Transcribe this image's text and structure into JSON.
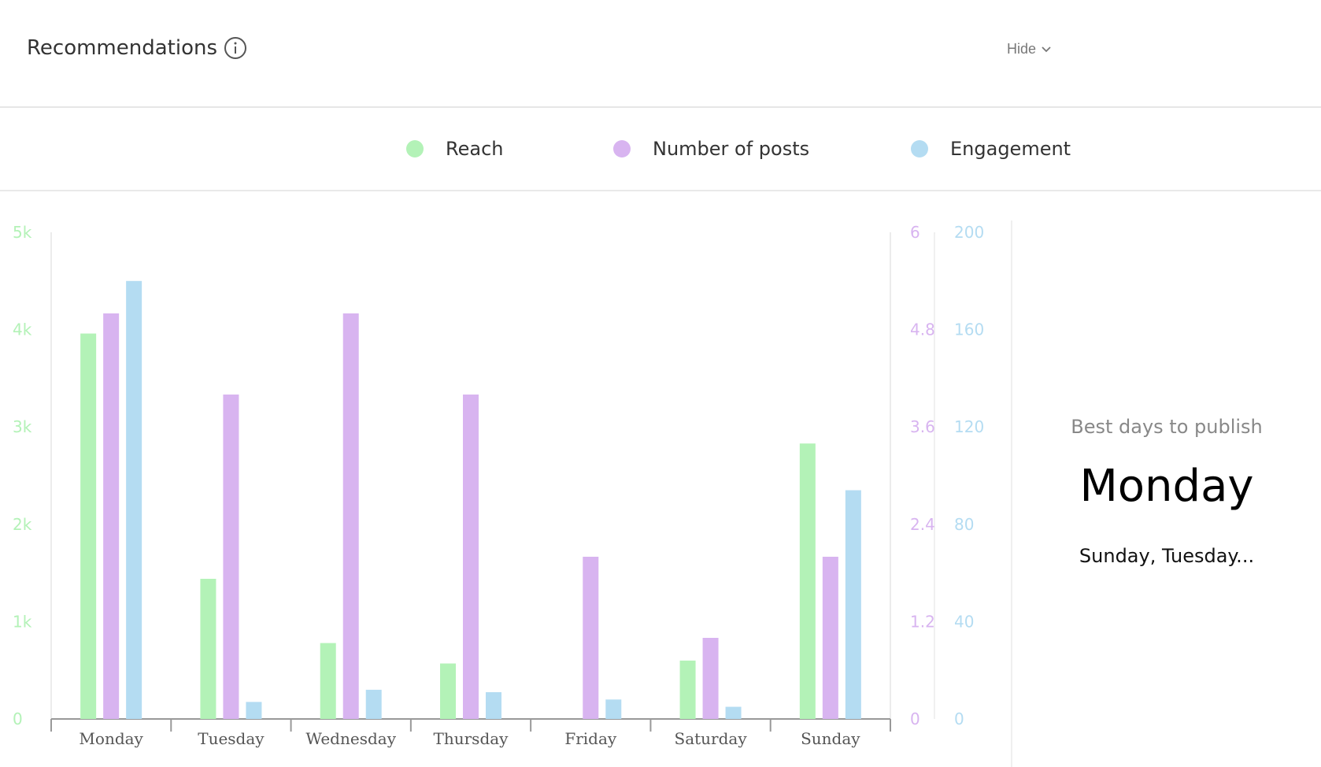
{
  "header": {
    "title": "Recommendations",
    "hide_label": "Hide"
  },
  "legend": [
    {
      "name": "Reach",
      "color": "#b3f2b7"
    },
    {
      "name": "Number of posts",
      "color": "#d8b4f0"
    },
    {
      "name": "Engagement",
      "color": "#b4dcf2"
    }
  ],
  "best_days": {
    "caption": "Best days to publish",
    "best": "Monday",
    "others": "Sunday, Tuesday..."
  },
  "chart_data": {
    "type": "bar",
    "categories": [
      "Monday",
      "Tuesday",
      "Wednesday",
      "Thursday",
      "Friday",
      "Saturday",
      "Sunday"
    ],
    "series": [
      {
        "name": "Reach",
        "color": "#b3f2b7",
        "axis": "left",
        "values": [
          3960,
          1440,
          780,
          570,
          0,
          600,
          2830
        ]
      },
      {
        "name": "Number of posts",
        "color": "#d8b4f0",
        "axis": "right1",
        "values": [
          5,
          4,
          5,
          4,
          2,
          1,
          2
        ]
      },
      {
        "name": "Engagement",
        "color": "#b4dcf2",
        "axis": "right2",
        "values": [
          180,
          7,
          12,
          11,
          8,
          5,
          94
        ]
      }
    ],
    "axes": {
      "left": {
        "ticks": [
          "0",
          "1k",
          "2k",
          "3k",
          "4k",
          "5k"
        ],
        "range": [
          0,
          5000
        ],
        "color": "#b3f2b7"
      },
      "right1": {
        "ticks": [
          "0",
          "1.2",
          "2.4",
          "3.6",
          "4.8",
          "6"
        ],
        "range": [
          0,
          6
        ],
        "color": "#d8b4f0"
      },
      "right2": {
        "ticks": [
          "0",
          "40",
          "80",
          "120",
          "160",
          "200"
        ],
        "range": [
          0,
          200
        ],
        "color": "#b4dcf2"
      }
    },
    "title": "",
    "xlabel": "",
    "grid": false
  }
}
